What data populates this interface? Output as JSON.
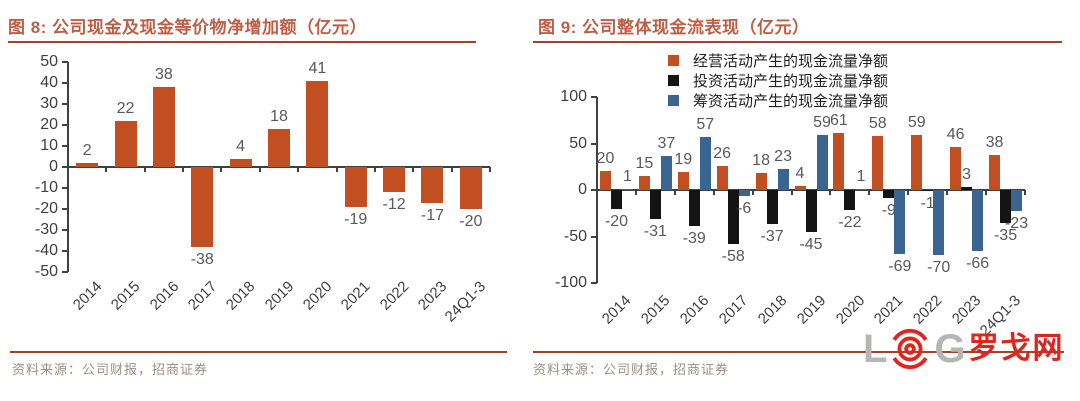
{
  "colors": {
    "title": "#BC5F45",
    "rule": "#A04327",
    "axis": "#404040",
    "data_label": "#595959",
    "tick_label": "#3F3F3F",
    "legend_text": "#1F1F1F",
    "source_text": "#A08D80",
    "logo_gray": "#B5B5B5",
    "logo_red": "#E2241D",
    "series_operating": "#C14F21",
    "series_investing": "#141414",
    "series_financing": "#3A6590"
  },
  "panels": [
    {
      "title": "图 8: 公司现金及现金等价物净增加额（亿元）",
      "source": "资料来源：公司财报，招商证券"
    },
    {
      "title": "图 9: 公司整体现金流表现（亿元）",
      "source": "资料来源：公司财报，招商证券",
      "logo": {
        "letter_l": "L",
        "letter_g": "G",
        "cn_text": "罗戈网"
      }
    }
  ],
  "chart_data": [
    {
      "type": "bar",
      "title": "公司现金及现金等价物净增加额（亿元）",
      "categories": [
        "2014",
        "2015",
        "2016",
        "2017",
        "2018",
        "2019",
        "2020",
        "2021",
        "2022",
        "2023",
        "24Q1-3"
      ],
      "series": [
        {
          "name": "",
          "color": "#C14F21",
          "values": [
            2,
            22,
            38,
            -38,
            4,
            18,
            41,
            -19,
            -12,
            -17,
            -20
          ]
        }
      ],
      "ylim": [
        -50,
        50
      ],
      "ytick": 10,
      "grid": false,
      "legend": false,
      "data_labels": true
    },
    {
      "type": "bar",
      "title": "公司整体现金流表现（亿元）",
      "categories": [
        "2014",
        "2015",
        "2016",
        "2017",
        "2018",
        "2019",
        "2020",
        "2021",
        "2022",
        "2023",
        "24Q1-3"
      ],
      "series": [
        {
          "name": "经营活动产生的现金流量净额",
          "color": "#C14F21",
          "values": [
            20,
            15,
            19,
            26,
            18,
            4,
            61,
            58,
            59,
            46,
            38
          ]
        },
        {
          "name": "投资活动产生的现金流量净额",
          "color": "#141414",
          "values": [
            -20,
            -31,
            -39,
            -58,
            -37,
            -45,
            -22,
            -9,
            -1,
            3,
            -35
          ]
        },
        {
          "name": "筹资活动产生的现金流量净额",
          "color": "#3A6590",
          "values": [
            1,
            37,
            57,
            -6,
            23,
            59,
            1,
            -69,
            -70,
            -66,
            -23
          ]
        }
      ],
      "ylim": [
        -100,
        100
      ],
      "ytick": 50,
      "grid": false,
      "legend": true,
      "legend_position": "top",
      "data_labels": true
    }
  ]
}
